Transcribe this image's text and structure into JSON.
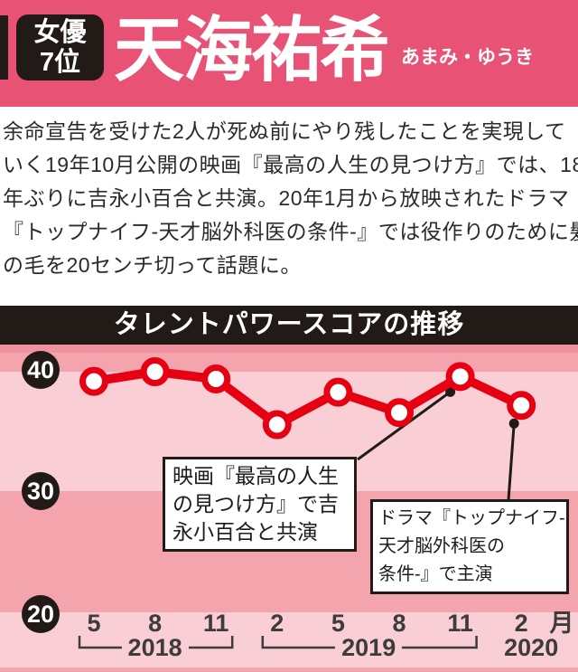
{
  "header": {
    "badge": {
      "category": "女優",
      "rank": "7位"
    },
    "name": "天海祐希",
    "furigana": "あまみ・ゆうき"
  },
  "bio": {
    "lines": [
      "余命宣告を受けた2人が死ぬ前にやり残したことを実現して",
      "いく19年10月公開の映画『最高の人生の見つけ方』では、18",
      "年ぶりに吉永小百合と共演。20年1月から放映されたドラマ",
      "『トップナイフ-天才脳外科医の条件-』では役作りのために髪",
      "の毛を20センチ切って話題に。"
    ]
  },
  "chart": {
    "title": "タレントパワースコアの推移"
  },
  "chart_data": {
    "type": "line",
    "title": "タレントパワースコアの推移",
    "x_labels": [
      "5",
      "8",
      "11",
      "2",
      "5",
      "8",
      "11",
      "2"
    ],
    "x_unit": "月",
    "year_groups": [
      {
        "label": "2018",
        "start": 0,
        "end": 2
      },
      {
        "label": "2019",
        "start": 3,
        "end": 6
      },
      {
        "label": "2020",
        "start": 7,
        "end": 7
      }
    ],
    "values": [
      39.2,
      40.0,
      39.4,
      35.6,
      38.3,
      36.6,
      39.6,
      37.2
    ],
    "y_ticks": [
      40,
      30,
      20
    ],
    "ylim": [
      15,
      42
    ],
    "grid": "banded-rows",
    "legend": "none",
    "line_color": "#e60012",
    "annotations": [
      {
        "lines": [
          "映画『最高の人生",
          "の見つけ方』で吉",
          "永小百合と共演"
        ],
        "target_index": 6
      },
      {
        "lines": [
          "ドラマ『トップナイフ-",
          "天才脳外科医の",
          "条件-』で主演"
        ],
        "target_index": 7
      }
    ]
  },
  "colors": {
    "header_bg": "#e85275",
    "ink_black": "#221a17",
    "band_light": "#f9ced4",
    "band_medium": "#f3a4ad",
    "band_dark": "#ef93a0",
    "line_red": "#e60012"
  }
}
